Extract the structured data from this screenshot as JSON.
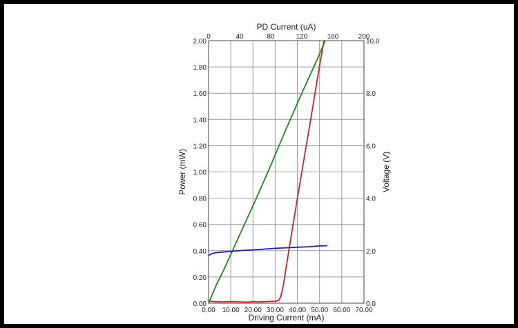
{
  "chart_data": {
    "type": "line",
    "title": "",
    "axes": {
      "bottom": {
        "label": "Driving Current (mA)",
        "range": [
          0,
          70
        ],
        "ticks": [
          0,
          10,
          20,
          30,
          40,
          50,
          60,
          70
        ],
        "tick_labels": [
          "0.00",
          "10.00",
          "20.00",
          "30.00",
          "40.00",
          "50.00",
          "60.00",
          "70.00"
        ]
      },
      "top": {
        "label": "PD Current (uA)",
        "range": [
          0,
          200
        ],
        "ticks": [
          0,
          40,
          80,
          120,
          160,
          200
        ],
        "tick_labels": [
          "0",
          "40",
          "80",
          "120",
          "160",
          "200"
        ]
      },
      "left": {
        "label": "Power (mW)",
        "range": [
          0,
          2
        ],
        "ticks": [
          0,
          0.2,
          0.4,
          0.6,
          0.8,
          1.0,
          1.2,
          1.4,
          1.6,
          1.8,
          2.0
        ],
        "tick_labels": [
          "0.00",
          "0.20",
          "0.40",
          "0.60",
          "0.80",
          "1.00",
          "1.20",
          "1.40",
          "1.60",
          "1.80",
          "2.00"
        ]
      },
      "right": {
        "label": "Voltage (V)",
        "range": [
          0,
          10
        ],
        "ticks": [
          0,
          2,
          4,
          6,
          8,
          10
        ],
        "tick_labels": [
          "0.0",
          "2.0",
          "4.0",
          "6.0",
          "8.0",
          "10.0"
        ]
      }
    },
    "grid": true,
    "series": [
      {
        "color": "#d42020",
        "x_axis": "bottom",
        "y_axis": "left",
        "x": [
          0,
          3,
          6,
          10,
          14,
          18,
          20,
          22,
          26,
          30,
          31.5,
          32.5,
          33.5,
          35,
          37,
          40,
          43,
          46,
          49,
          52
        ],
        "y": [
          0.015,
          0.012,
          0.01,
          0.012,
          0.01,
          0.008,
          0.012,
          0.01,
          0.012,
          0.015,
          0.02,
          0.05,
          0.12,
          0.28,
          0.49,
          0.8,
          1.1,
          1.4,
          1.71,
          2.0
        ]
      },
      {
        "color": "#1a8a1a",
        "x_axis": "top",
        "y_axis": "left",
        "x": [
          0,
          10,
          20,
          40,
          60,
          80,
          100,
          120,
          140,
          150
        ],
        "y": [
          0,
          0.14,
          0.26,
          0.52,
          0.78,
          1.05,
          1.33,
          1.6,
          1.86,
          2.0
        ]
      },
      {
        "color": "#1c1cc8",
        "x_axis": "bottom",
        "y_axis": "right",
        "x": [
          0,
          0.5,
          1,
          2,
          3,
          5,
          8,
          12,
          16,
          20,
          25,
          30,
          35,
          40,
          45,
          50,
          53.5
        ],
        "y": [
          1.8,
          1.84,
          1.87,
          1.9,
          1.92,
          1.94,
          1.96,
          1.99,
          2.01,
          2.03,
          2.06,
          2.09,
          2.11,
          2.13,
          2.15,
          2.18,
          2.19
        ]
      }
    ]
  }
}
